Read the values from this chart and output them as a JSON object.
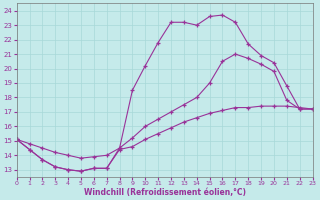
{
  "xlabel": "Windchill (Refroidissement éolien,°C)",
  "bg_color": "#c5eaea",
  "grid_color": "#a8d8d8",
  "line_color": "#993399",
  "xlim": [
    0,
    23
  ],
  "ylim": [
    12.5,
    24.5
  ],
  "xticks": [
    0,
    1,
    2,
    3,
    4,
    5,
    6,
    7,
    8,
    9,
    10,
    11,
    12,
    13,
    14,
    15,
    16,
    17,
    18,
    19,
    20,
    21,
    22,
    23
  ],
  "yticks": [
    13,
    14,
    15,
    16,
    17,
    18,
    19,
    20,
    21,
    22,
    23,
    24
  ],
  "line_upper_x": [
    0,
    1,
    2,
    3,
    4,
    5,
    6,
    7,
    8,
    9,
    10,
    11,
    12,
    13,
    14,
    15,
    16,
    17,
    18,
    19,
    20,
    21,
    22,
    23
  ],
  "line_upper_y": [
    15.1,
    14.4,
    13.7,
    13.2,
    13.0,
    12.9,
    13.1,
    13.1,
    14.5,
    18.5,
    20.2,
    21.8,
    23.2,
    23.2,
    23.0,
    23.6,
    23.7,
    23.2,
    21.7,
    20.9,
    20.4,
    18.8,
    17.2,
    17.2
  ],
  "line_mid_x": [
    0,
    1,
    2,
    3,
    4,
    5,
    6,
    7,
    8,
    9,
    10,
    11,
    12,
    13,
    14,
    15,
    16,
    17,
    18,
    19,
    20,
    21,
    22,
    23
  ],
  "line_mid_y": [
    15.1,
    14.8,
    14.5,
    14.2,
    14.0,
    13.8,
    13.9,
    14.0,
    14.5,
    15.2,
    16.0,
    16.5,
    17.0,
    17.5,
    18.0,
    19.0,
    20.5,
    21.0,
    20.7,
    20.3,
    19.8,
    17.8,
    17.2,
    17.2
  ],
  "line_lower_x": [
    0,
    1,
    2,
    3,
    4,
    5,
    6,
    7,
    8,
    9,
    10,
    11,
    12,
    13,
    14,
    15,
    16,
    17,
    18,
    19,
    20,
    21,
    22,
    23
  ],
  "line_lower_y": [
    15.1,
    14.4,
    13.7,
    13.2,
    13.0,
    12.9,
    13.1,
    13.1,
    14.4,
    14.6,
    15.1,
    15.5,
    15.9,
    16.3,
    16.6,
    16.9,
    17.1,
    17.3,
    17.3,
    17.4,
    17.4,
    17.4,
    17.3,
    17.2
  ]
}
